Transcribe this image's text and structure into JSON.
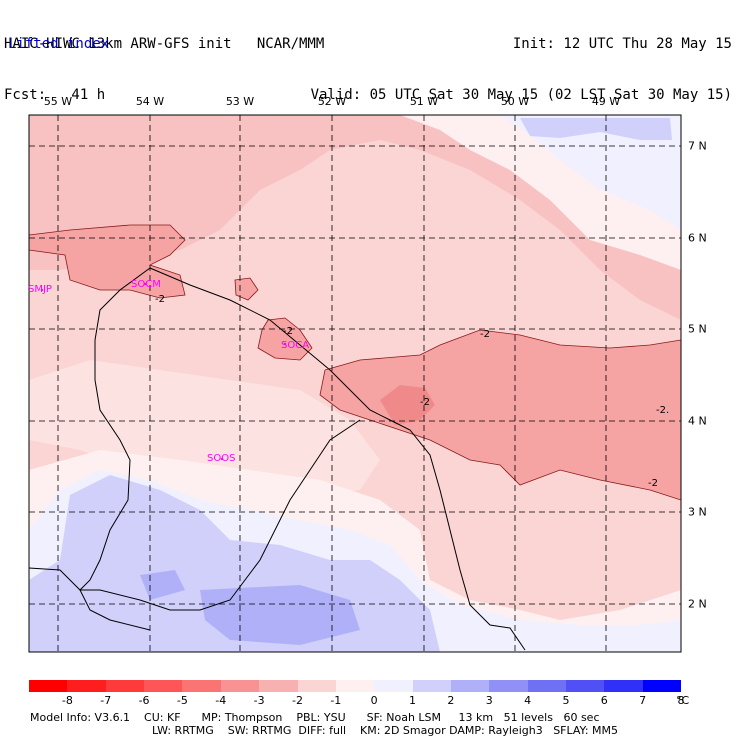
{
  "header": {
    "model_line": "HAIC-HIWC 13km ARW-GFS init   NCAR/MMM",
    "fcst_line": "Fcst:   41 h",
    "init_line": "Init: 12 UTC Thu 28 May 15",
    "valid_line": "Valid: 05 UTC Sat 30 May 15 (02 LST Sat 30 May 15)",
    "field_name": "Lifted index"
  },
  "longitudes": [
    "55 W",
    "54 W",
    "53 W",
    "52 W",
    "51 W",
    "50 W",
    "49 W"
  ],
  "latitudes": [
    "7 N",
    "6 N",
    "5 N",
    "4 N",
    "3 N",
    "2 N"
  ],
  "stations": [
    "SMJP",
    "SOCM",
    "SOCA",
    "SOOS"
  ],
  "contour_labels": [
    "-2",
    "-2",
    "-2",
    "-2",
    "-2",
    "-2."
  ],
  "colorbar": {
    "labels": [
      "-8",
      "-7",
      "-6",
      "-5",
      "-4",
      "-3",
      "-2",
      "-1",
      "0",
      "1",
      "2",
      "3",
      "4",
      "5",
      "6",
      "7",
      "8"
    ],
    "unit": "°C",
    "colors": [
      "#ff0000",
      "#ff1e1e",
      "#ff3a3a",
      "#fe5656",
      "#fb7474",
      "#f99393",
      "#f8b1b1",
      "#fbd4d4",
      "#fef0f0",
      "#f0f0fe",
      "#d0d0fb",
      "#b0b0f8",
      "#9090f6",
      "#7070f4",
      "#5050f4",
      "#3030f8",
      "#0000ff"
    ]
  },
  "footer": {
    "line1": "Model Info: V3.6.1    CU: KF      MP: Thompson    PBL: YSU      SF: Noah LSM     13 km   51 levels   60 sec",
    "line2": "LW: RRTMG    SW: RRTMG  DIFF: full    KM: 2D Smagor DAMP: Rayleigh3   SFLAY: MM5"
  }
}
